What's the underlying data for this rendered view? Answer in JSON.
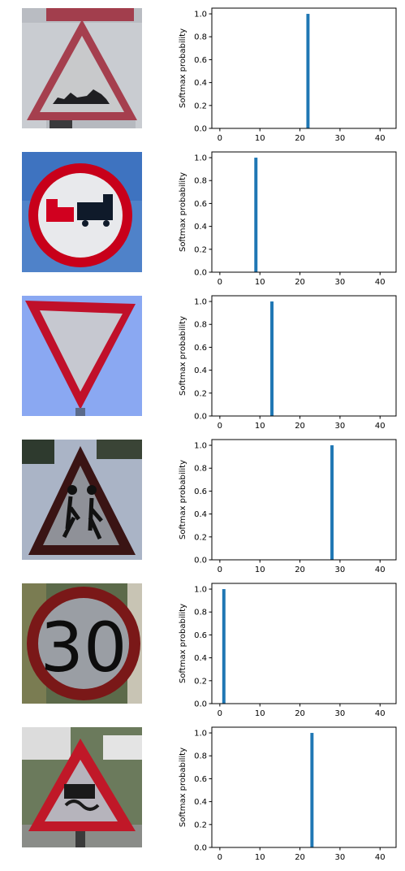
{
  "chart_data": [
    {
      "type": "bar",
      "ylabel": "Softmax probability",
      "xlim": [
        -2,
        44
      ],
      "ylim": [
        0,
        1.05
      ],
      "xticks": [
        0,
        10,
        20,
        30,
        40
      ],
      "yticks": [
        0.0,
        0.2,
        0.4,
        0.6,
        0.8,
        1.0
      ],
      "tick_labels_y": [
        "0.0",
        "0.2",
        "0.4",
        "0.6",
        "0.8",
        "1.0"
      ],
      "bars": [
        {
          "x": 22,
          "value": 1.0
        }
      ],
      "bar_color": "#1f77b4",
      "sign": "Bumpy road warning sign"
    },
    {
      "type": "bar",
      "ylabel": "Softmax probability",
      "xlim": [
        -2,
        44
      ],
      "ylim": [
        0,
        1.05
      ],
      "xticks": [
        0,
        10,
        20,
        30,
        40
      ],
      "yticks": [
        0.0,
        0.2,
        0.4,
        0.6,
        0.8,
        1.0
      ],
      "tick_labels_y": [
        "0.0",
        "0.2",
        "0.4",
        "0.6",
        "0.8",
        "1.0"
      ],
      "bars": [
        {
          "x": 9,
          "value": 1.0
        }
      ],
      "bar_color": "#1f77b4",
      "sign": "No passing for vehicles over 3.5 tonnes sign"
    },
    {
      "type": "bar",
      "ylabel": "Softmax probability",
      "xlim": [
        -2,
        44
      ],
      "ylim": [
        0,
        1.05
      ],
      "xticks": [
        0,
        10,
        20,
        30,
        40
      ],
      "yticks": [
        0.0,
        0.2,
        0.4,
        0.6,
        0.8,
        1.0
      ],
      "tick_labels_y": [
        "0.0",
        "0.2",
        "0.4",
        "0.6",
        "0.8",
        "1.0"
      ],
      "bars": [
        {
          "x": 13,
          "value": 1.0
        }
      ],
      "bar_color": "#1f77b4",
      "sign": "Yield sign"
    },
    {
      "type": "bar",
      "ylabel": "Softmax probability",
      "xlim": [
        -2,
        44
      ],
      "ylim": [
        0,
        1.05
      ],
      "xticks": [
        0,
        10,
        20,
        30,
        40
      ],
      "yticks": [
        0.0,
        0.2,
        0.4,
        0.6,
        0.8,
        1.0
      ],
      "tick_labels_y": [
        "0.0",
        "0.2",
        "0.4",
        "0.6",
        "0.8",
        "1.0"
      ],
      "bars": [
        {
          "x": 28,
          "value": 1.0
        }
      ],
      "bar_color": "#1f77b4",
      "sign": "Children crossing warning sign"
    },
    {
      "type": "bar",
      "ylabel": "Softmax probability",
      "xlim": [
        -2,
        44
      ],
      "ylim": [
        0,
        1.05
      ],
      "xticks": [
        0,
        10,
        20,
        30,
        40
      ],
      "yticks": [
        0.0,
        0.2,
        0.4,
        0.6,
        0.8,
        1.0
      ],
      "tick_labels_y": [
        "0.0",
        "0.2",
        "0.4",
        "0.6",
        "0.8",
        "1.0"
      ],
      "bars": [
        {
          "x": 1,
          "value": 1.0
        }
      ],
      "bar_color": "#1f77b4",
      "sign": "Speed limit 30 sign",
      "sign_text": "30"
    },
    {
      "type": "bar",
      "ylabel": "Softmax probability",
      "xlim": [
        -2,
        44
      ],
      "ylim": [
        0,
        1.05
      ],
      "xticks": [
        0,
        10,
        20,
        30,
        40
      ],
      "yticks": [
        0.0,
        0.2,
        0.4,
        0.6,
        0.8,
        1.0
      ],
      "tick_labels_y": [
        "0.0",
        "0.2",
        "0.4",
        "0.6",
        "0.8",
        "1.0"
      ],
      "bars": [
        {
          "x": 23,
          "value": 1.0
        }
      ],
      "bar_color": "#1f77b4",
      "sign": "Slippery road warning sign"
    }
  ]
}
